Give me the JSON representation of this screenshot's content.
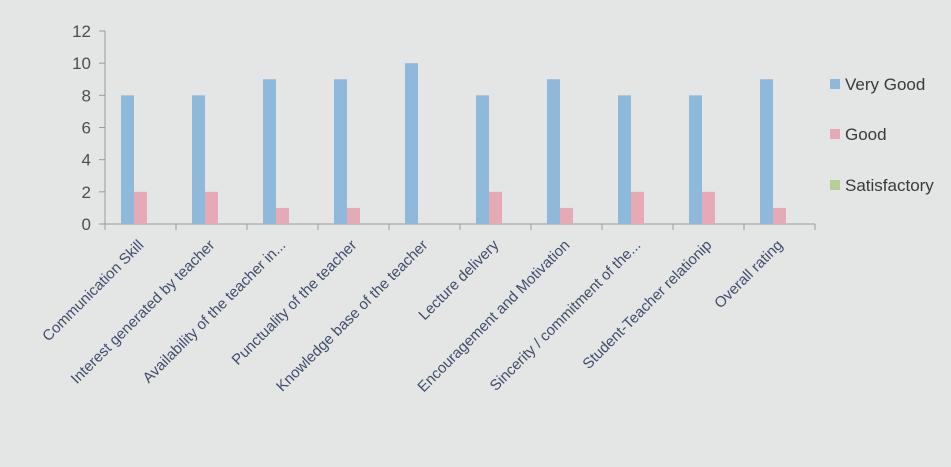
{
  "chart_data": {
    "type": "bar",
    "title": "",
    "xlabel": "",
    "ylabel": "",
    "ylim": [
      0,
      12
    ],
    "yticks": [
      0,
      2,
      4,
      6,
      8,
      10,
      12
    ],
    "grid": false,
    "legend_position": "right",
    "categories": [
      "Communication Skill",
      "Interest generated by teacher",
      "Availability of the teacher in...",
      "Punctuality of the teacher",
      "Knowledge base of the teacher",
      "Lecture delivery",
      "Encouragement and Motivation",
      "Sincerity / commitment of the...",
      "Student-Teacher relationip",
      "Overall rating"
    ],
    "series": [
      {
        "name": "Very Good",
        "color": "#8fb9db",
        "values": [
          8,
          8,
          9,
          9,
          10,
          8,
          9,
          8,
          8,
          9
        ]
      },
      {
        "name": "Good",
        "color": "#e6aab6",
        "values": [
          2,
          2,
          1,
          1,
          0,
          2,
          1,
          2,
          2,
          1
        ]
      },
      {
        "name": "Satisfactory",
        "color": "#b7cf97",
        "values": [
          0,
          0,
          0,
          0,
          0,
          0,
          0,
          0,
          0,
          0
        ]
      }
    ]
  }
}
